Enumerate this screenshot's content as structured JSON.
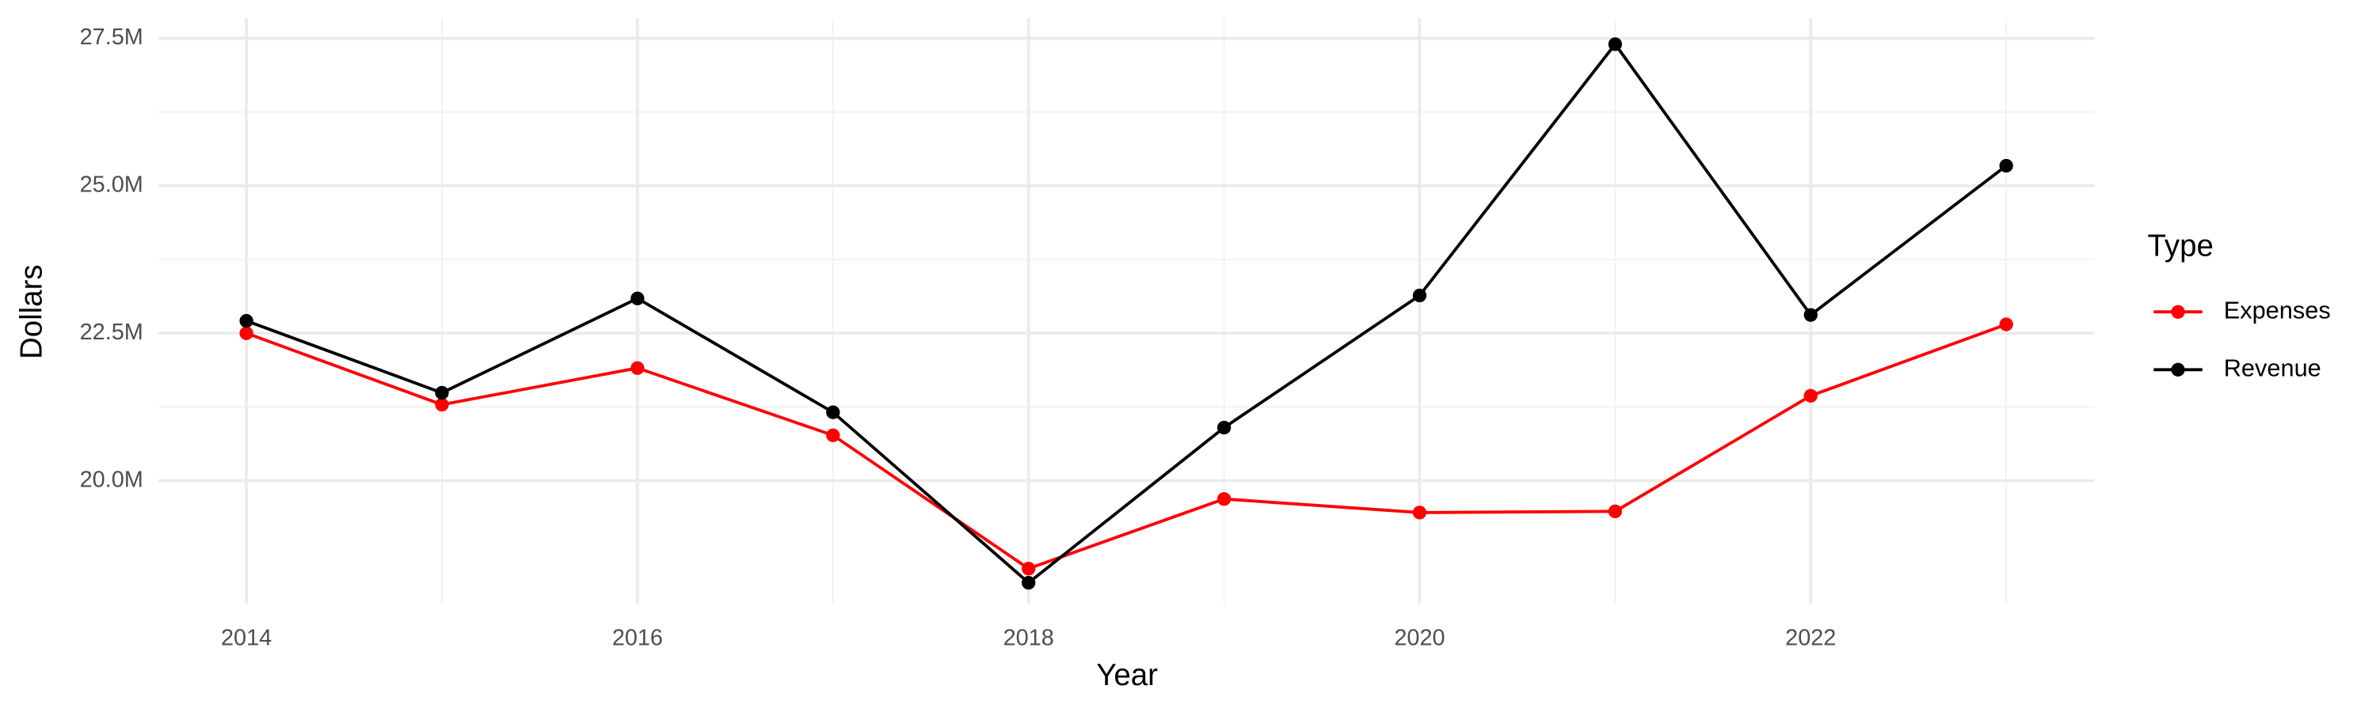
{
  "chart_data": {
    "type": "line",
    "x_label": "Year",
    "y_label": "Dollars",
    "legend_title": "Type",
    "legend_position": "right",
    "grid": true,
    "x": [
      2014,
      2015,
      2016,
      2017,
      2018,
      2019,
      2020,
      2021,
      2022,
      2023
    ],
    "xlim": [
      2013.55,
      2023.45
    ],
    "xticks": [
      2014,
      2016,
      2018,
      2020,
      2022
    ],
    "ylim": [
      17910000,
      27840000
    ],
    "yticks": [
      {
        "value": 20000000,
        "label": "20.0M"
      },
      {
        "value": 22500000,
        "label": "22.5M"
      },
      {
        "value": 25000000,
        "label": "25.0M"
      },
      {
        "value": 27500000,
        "label": "27.5M"
      }
    ],
    "series": [
      {
        "name": "Expenses",
        "color": "#ff0000",
        "values": [
          22500000,
          21290000,
          21910000,
          20770000,
          18510000,
          19690000,
          19460000,
          19480000,
          21440000,
          22650000
        ]
      },
      {
        "name": "Revenue",
        "color": "#000000",
        "values": [
          22710000,
          21490000,
          23090000,
          21160000,
          18270000,
          20900000,
          23140000,
          27400000,
          22810000,
          25340000
        ]
      }
    ]
  }
}
